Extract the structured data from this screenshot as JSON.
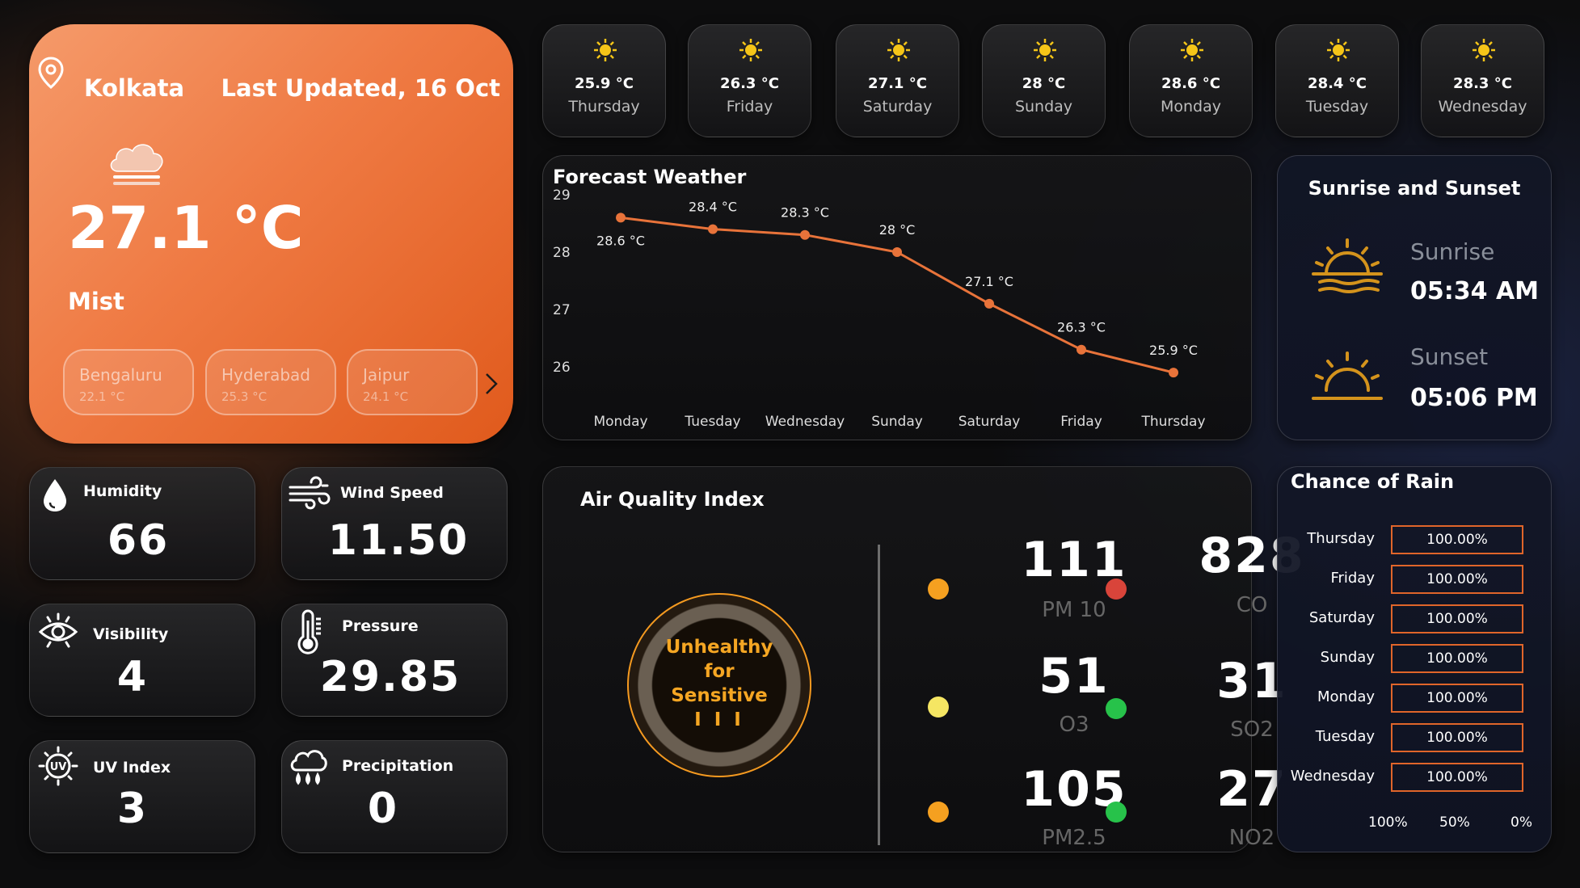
{
  "current": {
    "city": "Kolkata",
    "updated": "Last Updated, 16 Oct",
    "temp": "27.1 °C",
    "condition": "Mist",
    "cities": [
      {
        "name": "Bengaluru",
        "temp": "22.1 °C"
      },
      {
        "name": "Hyderabad",
        "temp": "25.3 °C"
      },
      {
        "name": "Jaipur",
        "temp": "24.1 °C"
      }
    ]
  },
  "forecast_tiles": [
    {
      "temp": "25.9 °C",
      "day": "Thursday"
    },
    {
      "temp": "26.3 °C",
      "day": "Friday"
    },
    {
      "temp": "27.1 °C",
      "day": "Saturday"
    },
    {
      "temp": "28 °C",
      "day": "Sunday"
    },
    {
      "temp": "28.6 °C",
      "day": "Monday"
    },
    {
      "temp": "28.4 °C",
      "day": "Tuesday"
    },
    {
      "temp": "28.3 °C",
      "day": "Wednesday"
    }
  ],
  "metrics": {
    "humidity": {
      "label": "Humidity",
      "value": "66"
    },
    "wind": {
      "label": "Wind Speed",
      "value": "11.50"
    },
    "visibility": {
      "label": "Visibility",
      "value": "4"
    },
    "pressure": {
      "label": "Pressure",
      "value": "29.85"
    },
    "uv": {
      "label": "UV Index",
      "value": "3"
    },
    "precipitation": {
      "label": "Precipitation",
      "value": "0"
    }
  },
  "chart_data": {
    "type": "line",
    "title": "Forecast Weather",
    "categories": [
      "Monday",
      "Tuesday",
      "Wednesday",
      "Sunday",
      "Saturday",
      "Friday",
      "Thursday"
    ],
    "values": [
      28.6,
      28.4,
      28.3,
      28,
      27.1,
      26.3,
      25.9
    ],
    "data_labels": [
      "28.6 °C",
      "28.4 °C",
      "28.3 °C",
      "28 °C",
      "27.1 °C",
      "26.3 °C",
      "25.9 °C"
    ],
    "yticks": [
      "29",
      "28",
      "27",
      "26"
    ],
    "ylim": [
      25.9,
      29
    ],
    "color": "#e8733a"
  },
  "sun": {
    "title": "Sunrise and Sunset",
    "sunrise_label": "Sunrise",
    "sunrise_time": "05:34 AM",
    "sunset_label": "Sunset",
    "sunset_time": "05:06 PM",
    "icon_color": "#d4931c"
  },
  "aqi": {
    "title": "Air Quality Index",
    "status_line1": "Unhealthy",
    "status_line2": "for",
    "status_line3": "Sensitive",
    "status_bars": "I I I",
    "status_color": "#f5a623",
    "pollutants": [
      {
        "value": "111",
        "label": "PM 10",
        "color": "#f5a020"
      },
      {
        "value": "828",
        "label": "CO",
        "color": "#d9443a"
      },
      {
        "value": "51",
        "label": "O3",
        "color": "#f5e663"
      },
      {
        "value": "31",
        "label": "SO2",
        "color": "#27c24a"
      },
      {
        "value": "105",
        "label": "PM2.5",
        "color": "#f5a020"
      },
      {
        "value": "27",
        "label": "NO2",
        "color": "#27c24a"
      }
    ]
  },
  "rain": {
    "title": "Chance of Rain",
    "rows": [
      {
        "day": "Thursday",
        "value": "100.00%"
      },
      {
        "day": "Friday",
        "value": "100.00%"
      },
      {
        "day": "Saturday",
        "value": "100.00%"
      },
      {
        "day": "Sunday",
        "value": "100.00%"
      },
      {
        "day": "Monday",
        "value": "100.00%"
      },
      {
        "day": "Tuesday",
        "value": "100.00%"
      },
      {
        "day": "Wednesday",
        "value": "100.00%"
      }
    ],
    "axis": [
      "100%",
      "50%",
      "0%"
    ]
  }
}
